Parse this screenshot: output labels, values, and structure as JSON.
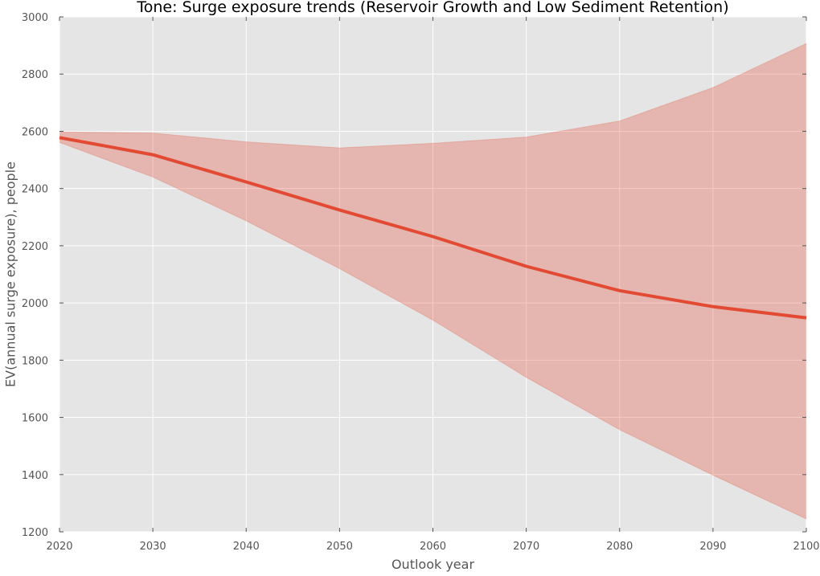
{
  "chart_data": {
    "type": "line",
    "title": "Tone: Surge exposure trends (Reservoir Growth and Low Sediment Retention)",
    "xlabel": "Outlook year",
    "ylabel": "EV(annual surge exposure), people",
    "xlim": [
      2020,
      2100
    ],
    "ylim": [
      1200,
      3000
    ],
    "x_ticks": [
      "2020",
      "2030",
      "2040",
      "2050",
      "2060",
      "2070",
      "2080",
      "2090",
      "2100"
    ],
    "y_ticks": [
      "1200",
      "1400",
      "1600",
      "1800",
      "2000",
      "2200",
      "2400",
      "2600",
      "2800",
      "3000"
    ],
    "grid": true,
    "x": [
      2020,
      2030,
      2040,
      2050,
      2060,
      2070,
      2080,
      2090,
      2100
    ],
    "series": [
      {
        "values": [
          2578,
          2518,
          2423,
          2325,
          2232,
          2128,
          2043,
          1987,
          1948
        ],
        "color": "#e24a33"
      }
    ],
    "band": {
      "upper": [
        2598,
        2594,
        2563,
        2542,
        2558,
        2580,
        2636,
        2753,
        2907
      ],
      "lower": [
        2561,
        2440,
        2287,
        2120,
        1940,
        1740,
        1557,
        1398,
        1245
      ],
      "color": "#e24a33"
    },
    "plot_bg": "#e5e5e5"
  }
}
